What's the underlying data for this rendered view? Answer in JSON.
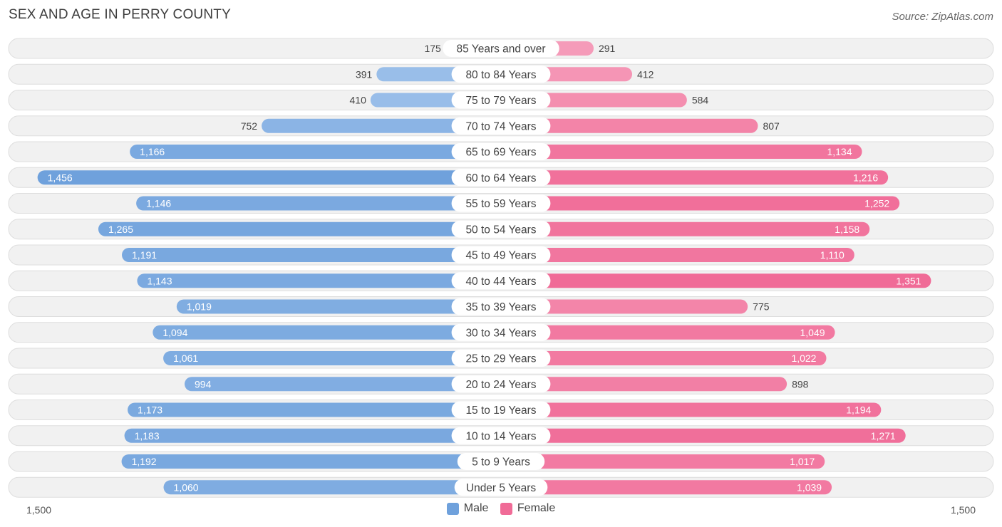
{
  "title": "SEX AND AGE IN PERRY COUNTY",
  "source": "Source: ZipAtlas.com",
  "colors": {
    "male_dark": "#6fa1dc",
    "male_light": "#a8c8ee",
    "female_dark": "#f06b97",
    "female_light": "#f7a8c2",
    "row_bg": "#f1f1f1",
    "row_border": "#dedede"
  },
  "chart_data": {
    "type": "bar",
    "orientation": "horizontal-diverging",
    "title": "SEX AND AGE IN PERRY COUNTY",
    "categories": [
      "85 Years and over",
      "80 to 84 Years",
      "75 to 79 Years",
      "70 to 74 Years",
      "65 to 69 Years",
      "60 to 64 Years",
      "55 to 59 Years",
      "50 to 54 Years",
      "45 to 49 Years",
      "40 to 44 Years",
      "35 to 39 Years",
      "30 to 34 Years",
      "25 to 29 Years",
      "20 to 24 Years",
      "15 to 19 Years",
      "10 to 14 Years",
      "5 to 9 Years",
      "Under 5 Years"
    ],
    "series": [
      {
        "name": "Male",
        "values": [
          175,
          391,
          410,
          752,
          1166,
          1456,
          1146,
          1265,
          1191,
          1143,
          1019,
          1094,
          1061,
          994,
          1173,
          1183,
          1192,
          1060
        ]
      },
      {
        "name": "Female",
        "values": [
          291,
          412,
          584,
          807,
          1134,
          1216,
          1252,
          1158,
          1110,
          1351,
          775,
          1049,
          1022,
          898,
          1194,
          1271,
          1017,
          1039
        ]
      }
    ],
    "xlim": [
      -1500,
      1500
    ],
    "axis_labels": {
      "left": "1,500",
      "right": "1,500"
    },
    "legend": [
      "Male",
      "Female"
    ],
    "legend_position": "bottom-center"
  }
}
